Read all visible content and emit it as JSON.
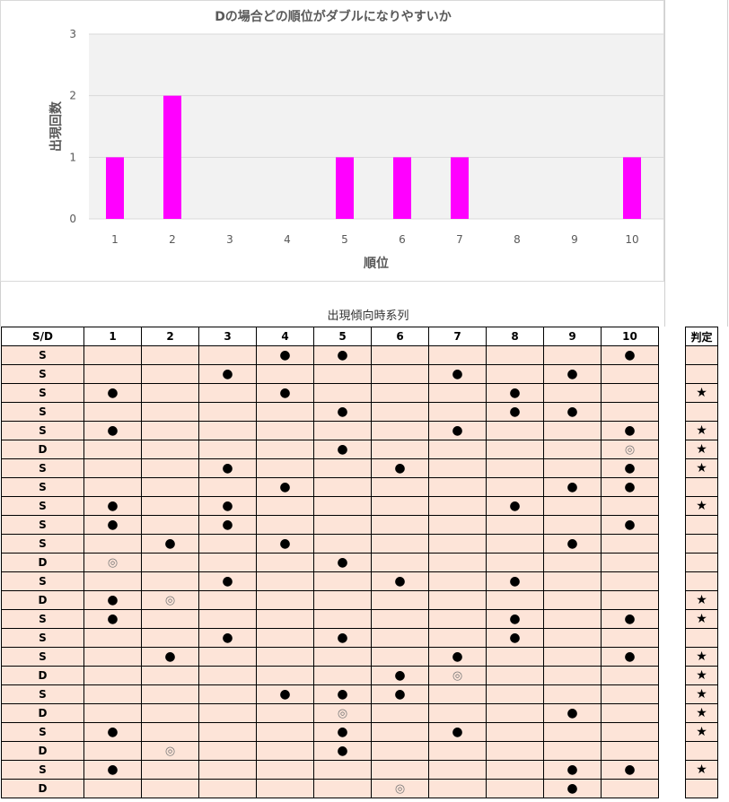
{
  "chart_data": {
    "type": "bar",
    "title": "Dの場合どの順位がダブルになりやすいか",
    "xlabel": "順位",
    "ylabel": "出現回数",
    "categories": [
      "1",
      "2",
      "3",
      "4",
      "5",
      "6",
      "7",
      "8",
      "9",
      "10"
    ],
    "values": [
      1,
      2,
      0,
      0,
      1,
      1,
      1,
      0,
      0,
      1
    ],
    "ylim": [
      0,
      3
    ],
    "yticks": [
      "0",
      "1",
      "2",
      "3"
    ],
    "bar_color": "#ff00ff",
    "plot_background": "#f2f2f2",
    "grid": true
  },
  "table": {
    "title": "出現傾向時系列",
    "header_sd": "S/D",
    "columns": [
      "1",
      "2",
      "3",
      "4",
      "5",
      "6",
      "7",
      "8",
      "9",
      "10"
    ],
    "judge_header": "判定",
    "symbols": {
      "dot": "●",
      "double": "◎",
      "star": "★"
    },
    "rows": [
      {
        "sd": "S",
        "marks": [
          "",
          "",
          "",
          "●",
          "●",
          "",
          "",
          "",
          "",
          "●"
        ],
        "judge": ""
      },
      {
        "sd": "S",
        "marks": [
          "",
          "",
          "●",
          "",
          "",
          "",
          "●",
          "",
          "●",
          ""
        ],
        "judge": ""
      },
      {
        "sd": "S",
        "marks": [
          "●",
          "",
          "",
          "●",
          "",
          "",
          "",
          "●",
          "",
          ""
        ],
        "judge": "★"
      },
      {
        "sd": "S",
        "marks": [
          "",
          "",
          "",
          "",
          "●",
          "",
          "",
          "●",
          "●",
          ""
        ],
        "judge": ""
      },
      {
        "sd": "S",
        "marks": [
          "●",
          "",
          "",
          "",
          "",
          "",
          "●",
          "",
          "",
          "●"
        ],
        "judge": "★"
      },
      {
        "sd": "D",
        "marks": [
          "",
          "",
          "",
          "",
          "●",
          "",
          "",
          "",
          "",
          "◎"
        ],
        "judge": "★"
      },
      {
        "sd": "S",
        "marks": [
          "",
          "",
          "●",
          "",
          "",
          "●",
          "",
          "",
          "",
          "●"
        ],
        "judge": "★"
      },
      {
        "sd": "S",
        "marks": [
          "",
          "",
          "",
          "●",
          "",
          "",
          "",
          "",
          "●",
          "●"
        ],
        "judge": ""
      },
      {
        "sd": "S",
        "marks": [
          "●",
          "",
          "●",
          "",
          "",
          "",
          "",
          "●",
          "",
          ""
        ],
        "judge": "★"
      },
      {
        "sd": "S",
        "marks": [
          "●",
          "",
          "●",
          "",
          "",
          "",
          "",
          "",
          "",
          "●"
        ],
        "judge": ""
      },
      {
        "sd": "S",
        "marks": [
          "",
          "●",
          "",
          "●",
          "",
          "",
          "",
          "",
          "●",
          ""
        ],
        "judge": ""
      },
      {
        "sd": "D",
        "marks": [
          "◎",
          "",
          "",
          "",
          "●",
          "",
          "",
          "",
          "",
          ""
        ],
        "judge": ""
      },
      {
        "sd": "S",
        "marks": [
          "",
          "",
          "●",
          "",
          "",
          "●",
          "",
          "●",
          "",
          ""
        ],
        "judge": ""
      },
      {
        "sd": "D",
        "marks": [
          "●",
          "◎",
          "",
          "",
          "",
          "",
          "",
          "",
          "",
          ""
        ],
        "judge": "★"
      },
      {
        "sd": "S",
        "marks": [
          "●",
          "",
          "",
          "",
          "",
          "",
          "",
          "●",
          "",
          "●"
        ],
        "judge": "★"
      },
      {
        "sd": "S",
        "marks": [
          "",
          "",
          "●",
          "",
          "●",
          "",
          "",
          "●",
          "",
          ""
        ],
        "judge": ""
      },
      {
        "sd": "S",
        "marks": [
          "",
          "●",
          "",
          "",
          "",
          "",
          "●",
          "",
          "",
          "●"
        ],
        "judge": "★"
      },
      {
        "sd": "D",
        "marks": [
          "",
          "",
          "",
          "",
          "",
          "●",
          "◎",
          "",
          "",
          ""
        ],
        "judge": "★"
      },
      {
        "sd": "S",
        "marks": [
          "",
          "",
          "",
          "●",
          "●",
          "●",
          "",
          "",
          "",
          ""
        ],
        "judge": "★"
      },
      {
        "sd": "D",
        "marks": [
          "",
          "",
          "",
          "",
          "◎",
          "",
          "",
          "",
          "●",
          ""
        ],
        "judge": "★"
      },
      {
        "sd": "S",
        "marks": [
          "●",
          "",
          "",
          "",
          "●",
          "",
          "●",
          "",
          "",
          ""
        ],
        "judge": "★"
      },
      {
        "sd": "D",
        "marks": [
          "",
          "◎",
          "",
          "",
          "●",
          "",
          "",
          "",
          "",
          ""
        ],
        "judge": ""
      },
      {
        "sd": "S",
        "marks": [
          "●",
          "",
          "",
          "",
          "",
          "",
          "",
          "",
          "●",
          "●"
        ],
        "judge": "★"
      },
      {
        "sd": "D",
        "marks": [
          "",
          "",
          "",
          "",
          "",
          "◎",
          "",
          "",
          "●",
          ""
        ],
        "judge": ""
      }
    ]
  }
}
